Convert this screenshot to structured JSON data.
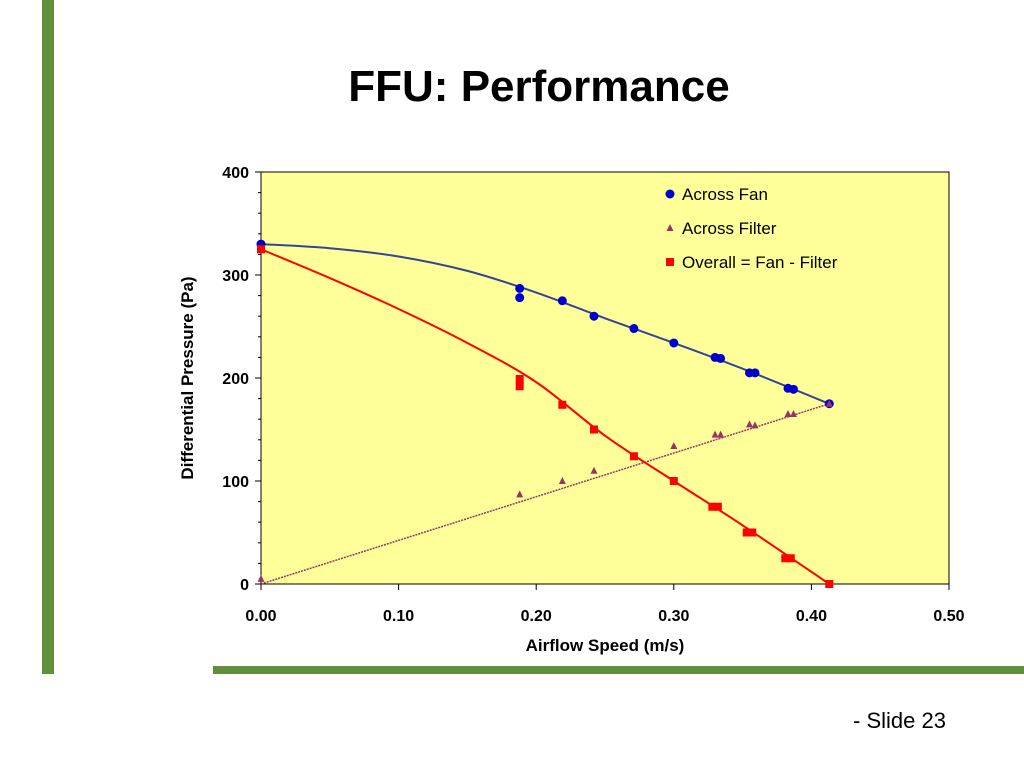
{
  "slide": {
    "title": "FFU: Performance",
    "number": "- Slide 23"
  },
  "colors": {
    "accent_bar": "#5f8f3a",
    "plot_background": "#ffff99",
    "fan": "#0000cc",
    "fan_curve": "#334499",
    "filter": "#993366",
    "overall": "#ff0000"
  },
  "chart_data": {
    "type": "scatter",
    "xlabel": "Airflow Speed (m/s)",
    "ylabel": "Differential Pressure (Pa)",
    "xlim": [
      0,
      0.5
    ],
    "ylim": [
      0,
      400
    ],
    "x_ticks": [
      "0.00",
      "0.10",
      "0.20",
      "0.30",
      "0.40",
      "0.50"
    ],
    "y_ticks": [
      "0",
      "100",
      "200",
      "300",
      "400"
    ],
    "legend_position": "top-right",
    "grid": false,
    "series": [
      {
        "name": "Across Fan",
        "marker": "circle",
        "color": "#0000cc",
        "line_color": "#334499",
        "points": [
          [
            0.0,
            330
          ],
          [
            0.188,
            287
          ],
          [
            0.188,
            278
          ],
          [
            0.219,
            275
          ],
          [
            0.242,
            260
          ],
          [
            0.271,
            248
          ],
          [
            0.3,
            234
          ],
          [
            0.33,
            220
          ],
          [
            0.334,
            219
          ],
          [
            0.355,
            205
          ],
          [
            0.359,
            205
          ],
          [
            0.383,
            190
          ],
          [
            0.387,
            189
          ],
          [
            0.413,
            175
          ]
        ],
        "fit": [
          [
            0.0,
            330
          ],
          [
            0.05,
            326
          ],
          [
            0.1,
            318
          ],
          [
            0.15,
            304
          ],
          [
            0.2,
            283
          ],
          [
            0.25,
            258
          ],
          [
            0.3,
            234
          ],
          [
            0.35,
            209
          ],
          [
            0.413,
            175
          ]
        ]
      },
      {
        "name": "Across Filter",
        "marker": "triangle",
        "color": "#993366",
        "line_color": "#993366",
        "points": [
          [
            0.0,
            5
          ],
          [
            0.188,
            87
          ],
          [
            0.219,
            100
          ],
          [
            0.242,
            110
          ],
          [
            0.271,
            124
          ],
          [
            0.3,
            134
          ],
          [
            0.33,
            145
          ],
          [
            0.334,
            145
          ],
          [
            0.355,
            155
          ],
          [
            0.359,
            154
          ],
          [
            0.383,
            165
          ],
          [
            0.387,
            165
          ],
          [
            0.413,
            175
          ]
        ],
        "fit": [
          [
            0.0,
            0
          ],
          [
            0.413,
            175
          ]
        ]
      },
      {
        "name": "Overall = Fan - Filter",
        "marker": "square",
        "color": "#ff0000",
        "line_color": "#ff0000",
        "points": [
          [
            0.0,
            325
          ],
          [
            0.188,
            199
          ],
          [
            0.188,
            192
          ],
          [
            0.219,
            174
          ],
          [
            0.242,
            150
          ],
          [
            0.271,
            124
          ],
          [
            0.3,
            100
          ],
          [
            0.328,
            75
          ],
          [
            0.332,
            75
          ],
          [
            0.353,
            50
          ],
          [
            0.357,
            50
          ],
          [
            0.381,
            25
          ],
          [
            0.385,
            25
          ],
          [
            0.413,
            0
          ]
        ],
        "fit": [
          [
            0.0,
            325
          ],
          [
            0.05,
            297
          ],
          [
            0.1,
            267
          ],
          [
            0.15,
            234
          ],
          [
            0.2,
            196
          ],
          [
            0.25,
            144
          ],
          [
            0.3,
            100
          ],
          [
            0.35,
            57
          ],
          [
            0.413,
            0
          ]
        ]
      }
    ]
  }
}
